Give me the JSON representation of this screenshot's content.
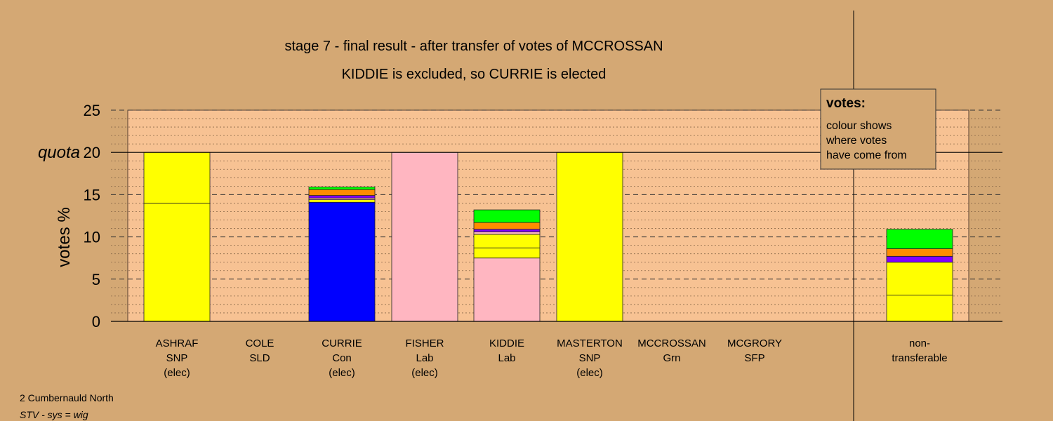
{
  "chart_data": {
    "type": "bar",
    "title": "stage 7 - final result - after transfer of votes of MCCROSSAN",
    "subtitle": "KIDDIE is excluded, so CURRIE is elected",
    "ylabel": "votes %",
    "ylim": [
      0,
      25
    ],
    "yticks": [
      0,
      5,
      10,
      15,
      20,
      25
    ],
    "quota": {
      "label": "quota",
      "value": 20
    },
    "grid": true,
    "legend": {
      "title": "votes:",
      "lines": [
        "colour shows",
        "where votes",
        "have come from"
      ],
      "position": "top-right"
    },
    "categories": [
      {
        "name": "ASHRAF",
        "party": "SNP",
        "status": "(elec)",
        "segments": [
          {
            "value": 14.0,
            "color": "#ffff00"
          },
          {
            "value": 6.0,
            "color": "#ffff00"
          }
        ]
      },
      {
        "name": "COLE",
        "party": "SLD",
        "status": "",
        "segments": []
      },
      {
        "name": "CURRIE",
        "party": "Con",
        "status": "(elec)",
        "segments": [
          {
            "value": 14.1,
            "color": "#0000ff"
          },
          {
            "value": 0.3,
            "color": "#ffff00"
          },
          {
            "value": 0.2,
            "color": "#ffb6c1"
          },
          {
            "value": 0.3,
            "color": "#8000ff"
          },
          {
            "value": 0.7,
            "color": "#ff8c00"
          },
          {
            "value": 0.3,
            "color": "#00ff00"
          }
        ]
      },
      {
        "name": "FISHER",
        "party": "Lab",
        "status": "(elec)",
        "segments": [
          {
            "value": 20.0,
            "color": "#ffb6c1"
          }
        ]
      },
      {
        "name": "KIDDIE",
        "party": "Lab",
        "status": "",
        "segments": [
          {
            "value": 7.5,
            "color": "#ffb6c1"
          },
          {
            "value": 1.2,
            "color": "#ffff00"
          },
          {
            "value": 1.6,
            "color": "#ffff00"
          },
          {
            "value": 0.3,
            "color": "#ffb6c1"
          },
          {
            "value": 0.3,
            "color": "#8000ff"
          },
          {
            "value": 0.8,
            "color": "#ff8c00"
          },
          {
            "value": 1.5,
            "color": "#00ff00"
          }
        ]
      },
      {
        "name": "MASTERTON",
        "party": "SNP",
        "status": "(elec)",
        "segments": [
          {
            "value": 20.0,
            "color": "#ffff00"
          }
        ]
      },
      {
        "name": "MCCROSSAN",
        "party": "Grn",
        "status": "",
        "segments": []
      },
      {
        "name": "MCGRORY",
        "party": "SFP",
        "status": "",
        "segments": []
      }
    ],
    "nontransferable": {
      "label_line1": "non-",
      "label_line2": "transferable",
      "segments": [
        {
          "value": 3.1,
          "color": "#ffff00"
        },
        {
          "value": 3.9,
          "color": "#ffff00"
        },
        {
          "value": 0.7,
          "color": "#8000ff"
        },
        {
          "value": 0.9,
          "color": "#ff8c00"
        },
        {
          "value": 2.3,
          "color": "#00ff00"
        }
      ]
    }
  },
  "footer": {
    "line1": "2 Cumbernauld North",
    "line2": "STV - sys = wig"
  }
}
